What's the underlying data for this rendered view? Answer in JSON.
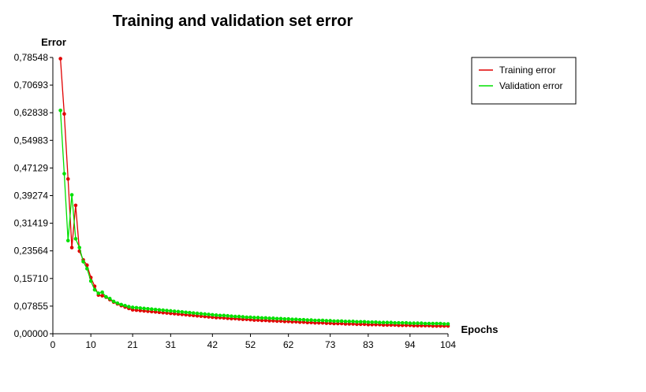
{
  "chart_data": {
    "type": "line",
    "title": "Training and validation set error",
    "ylabel": "Error",
    "xlabel": "Epochs",
    "ylim": [
      0,
      0.78548
    ],
    "xlim": [
      0,
      104
    ],
    "yticks": [
      "0,00000",
      "0,07855",
      "0,15710",
      "0,23564",
      "0,31419",
      "0,39274",
      "0,47129",
      "0,54983",
      "0,62838",
      "0,70693",
      "0,78548"
    ],
    "xticks": [
      0,
      10,
      21,
      31,
      42,
      52,
      62,
      73,
      83,
      94,
      104
    ],
    "grid": false,
    "legend_position": "top-right",
    "x": [
      2,
      3,
      4,
      5,
      6,
      7,
      8,
      9,
      10,
      11,
      12,
      13,
      14,
      15,
      16,
      17,
      18,
      19,
      20,
      21,
      22,
      23,
      24,
      25,
      26,
      27,
      28,
      29,
      30,
      31,
      32,
      33,
      34,
      35,
      36,
      37,
      38,
      39,
      40,
      41,
      42,
      43,
      44,
      45,
      46,
      47,
      48,
      49,
      50,
      51,
      52,
      53,
      54,
      55,
      56,
      57,
      58,
      59,
      60,
      61,
      62,
      63,
      64,
      65,
      66,
      67,
      68,
      69,
      70,
      71,
      72,
      73,
      74,
      75,
      76,
      77,
      78,
      79,
      80,
      81,
      82,
      83,
      84,
      85,
      86,
      87,
      88,
      89,
      90,
      91,
      92,
      93,
      94,
      95,
      96,
      97,
      98,
      99,
      100,
      101,
      102,
      103,
      104
    ],
    "series": [
      {
        "name": "Training error",
        "color": "#e00000",
        "values": [
          0.782,
          0.625,
          0.44,
          0.245,
          0.365,
          0.235,
          0.21,
          0.195,
          0.16,
          0.135,
          0.11,
          0.108,
          0.104,
          0.097,
          0.09,
          0.085,
          0.08,
          0.076,
          0.072,
          0.068,
          0.067,
          0.066,
          0.065,
          0.064,
          0.063,
          0.062,
          0.061,
          0.06,
          0.059,
          0.058,
          0.057,
          0.056,
          0.055,
          0.054,
          0.053,
          0.052,
          0.051,
          0.05,
          0.049,
          0.048,
          0.047,
          0.046,
          0.046,
          0.045,
          0.044,
          0.043,
          0.043,
          0.042,
          0.041,
          0.041,
          0.04,
          0.039,
          0.039,
          0.038,
          0.038,
          0.037,
          0.037,
          0.036,
          0.036,
          0.035,
          0.035,
          0.034,
          0.034,
          0.033,
          0.033,
          0.032,
          0.032,
          0.031,
          0.031,
          0.031,
          0.03,
          0.03,
          0.029,
          0.029,
          0.029,
          0.028,
          0.028,
          0.028,
          0.027,
          0.027,
          0.027,
          0.026,
          0.026,
          0.026,
          0.026,
          0.025,
          0.025,
          0.025,
          0.025,
          0.024,
          0.024,
          0.024,
          0.024,
          0.023,
          0.023,
          0.023,
          0.023,
          0.023,
          0.022,
          0.022,
          0.022,
          0.022,
          0.022
        ]
      },
      {
        "name": "Validation error",
        "color": "#00e000",
        "values": [
          0.635,
          0.455,
          0.265,
          0.395,
          0.27,
          0.245,
          0.205,
          0.185,
          0.15,
          0.125,
          0.115,
          0.118,
          0.105,
          0.1,
          0.092,
          0.087,
          0.083,
          0.08,
          0.077,
          0.075,
          0.074,
          0.073,
          0.072,
          0.071,
          0.07,
          0.069,
          0.068,
          0.067,
          0.066,
          0.065,
          0.064,
          0.063,
          0.062,
          0.061,
          0.06,
          0.059,
          0.058,
          0.057,
          0.056,
          0.055,
          0.054,
          0.053,
          0.052,
          0.052,
          0.051,
          0.05,
          0.049,
          0.049,
          0.048,
          0.047,
          0.047,
          0.046,
          0.046,
          0.045,
          0.045,
          0.044,
          0.044,
          0.043,
          0.043,
          0.042,
          0.042,
          0.041,
          0.041,
          0.04,
          0.04,
          0.039,
          0.039,
          0.038,
          0.038,
          0.038,
          0.037,
          0.037,
          0.036,
          0.036,
          0.036,
          0.035,
          0.035,
          0.035,
          0.034,
          0.034,
          0.034,
          0.033,
          0.033,
          0.033,
          0.032,
          0.032,
          0.032,
          0.032,
          0.031,
          0.031,
          0.031,
          0.031,
          0.03,
          0.03,
          0.03,
          0.03,
          0.029,
          0.029,
          0.029,
          0.029,
          0.029,
          0.028,
          0.028
        ]
      }
    ]
  }
}
